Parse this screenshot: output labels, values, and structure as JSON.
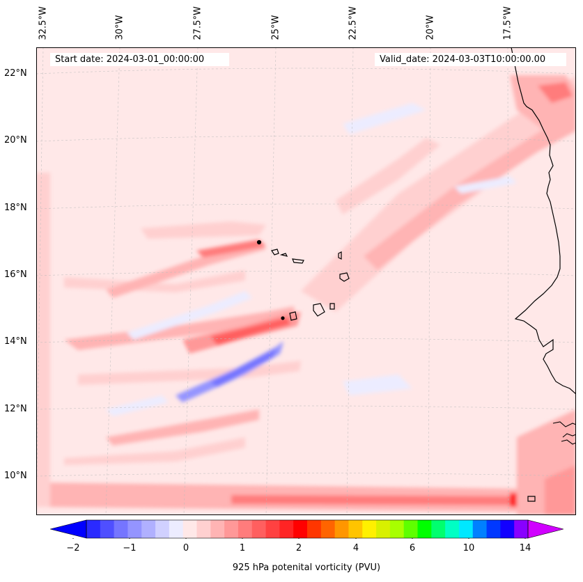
{
  "map": {
    "header": {
      "start_date": "Start date: 2024-03-01_00:00:00",
      "valid_date": "Valid_date: 2024-03-03T10:00:00.00"
    },
    "lon_labels": [
      "32.5°W",
      "30°W",
      "27.5°W",
      "25°W",
      "22.5°W",
      "20°W",
      "17.5°W"
    ],
    "lat_labels": [
      "22°N",
      "20°N",
      "18°N",
      "16°N",
      "14°N",
      "12°N",
      "10°N"
    ],
    "colorbar": {
      "title": "925 hPa potenital vorticity (PVU)",
      "tick_labels": [
        "−2",
        "−1",
        "0",
        "1",
        "2",
        "4",
        "6",
        "10",
        "14"
      ],
      "colors": [
        "#0000ff",
        "#2a2aff",
        "#4f4fff",
        "#7575ff",
        "#9494ff",
        "#b0b0ff",
        "#d0d0ff",
        "#ececff",
        "#ffe8e8",
        "#ffd0d0",
        "#ffb4b4",
        "#ff9898",
        "#ff7c7c",
        "#ff5f5f",
        "#ff4141",
        "#ff2424",
        "#ff0000",
        "#ff3600",
        "#ff6400",
        "#ff9600",
        "#ffc400",
        "#fff000",
        "#d8f000",
        "#a8ff00",
        "#5eff00",
        "#00ff00",
        "#00ff6e",
        "#00ffc4",
        "#00e8ff",
        "#0080ff",
        "#0038ff",
        "#1200ff",
        "#8800ff",
        "#d000ff"
      ]
    },
    "colors": {
      "background_field": "#ffe8e8",
      "positive_light": "#ffd0d0",
      "positive_mid": "#ffb4b4",
      "positive_strong": "#ff5f5f",
      "negative": "#9494ff",
      "coastline": "#000000",
      "gridline": "#bbbbbb"
    }
  }
}
